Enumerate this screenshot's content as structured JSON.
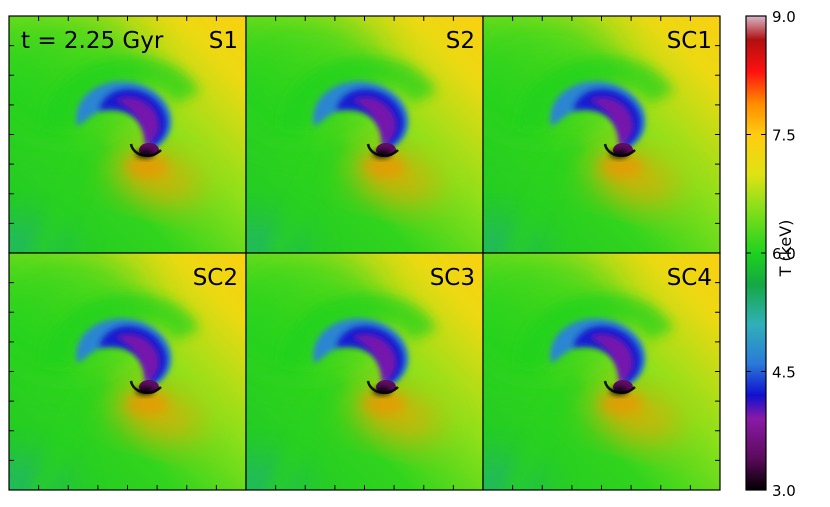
{
  "chart_data": {
    "type": "heatmap",
    "time_label": "t = 2.25 Gyr",
    "panels": [
      {
        "label": "S1",
        "row": 0,
        "col": 0,
        "variant": 0.0
      },
      {
        "label": "S2",
        "row": 0,
        "col": 1,
        "variant": 0.3
      },
      {
        "label": "SC1",
        "row": 0,
        "col": 2,
        "variant": 0.6
      },
      {
        "label": "SC2",
        "row": 1,
        "col": 0,
        "variant": 0.2
      },
      {
        "label": "SC3",
        "row": 1,
        "col": 1,
        "variant": 0.5
      },
      {
        "label": "SC4",
        "row": 1,
        "col": 2,
        "variant": 0.8
      }
    ],
    "colorbar": {
      "label": "T (keV)",
      "range": [
        3.0,
        9.0
      ],
      "ticks": [
        "3.0",
        "4.5",
        "6.0",
        "7.5",
        "9.0"
      ],
      "tick_values": [
        3.0,
        4.5,
        6.0,
        7.5,
        9.0
      ],
      "colormap": "spectral",
      "stops": [
        {
          "v": 3.0,
          "color": "#000000"
        },
        {
          "v": 3.4,
          "color": "#5a0a5a"
        },
        {
          "v": 3.9,
          "color": "#8a1aa6"
        },
        {
          "v": 4.2,
          "color": "#1010d0"
        },
        {
          "v": 4.6,
          "color": "#2a7ad8"
        },
        {
          "v": 5.1,
          "color": "#30b0b8"
        },
        {
          "v": 5.6,
          "color": "#14a844"
        },
        {
          "v": 6.0,
          "color": "#1ed21e"
        },
        {
          "v": 6.6,
          "color": "#8ee01a"
        },
        {
          "v": 7.0,
          "color": "#e0e214"
        },
        {
          "v": 7.5,
          "color": "#ffcc10"
        },
        {
          "v": 7.9,
          "color": "#ff8a00"
        },
        {
          "v": 8.3,
          "color": "#ff1010"
        },
        {
          "v": 8.7,
          "color": "#b01010"
        },
        {
          "v": 9.0,
          "color": "#d8b8c8"
        }
      ]
    }
  }
}
